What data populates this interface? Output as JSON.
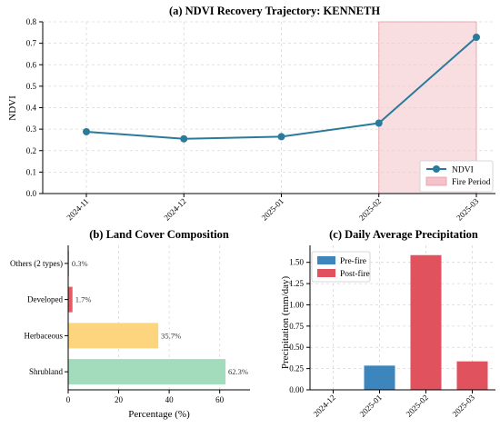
{
  "chart_data": [
    {
      "type": "line",
      "title": "(a) NDVI Recovery Trajectory: KENNETH",
      "xlabel": "",
      "ylabel": "NDVI",
      "categories": [
        "2024-11",
        "2024-12",
        "2025-01",
        "2025-02",
        "2025-03"
      ],
      "series": [
        {
          "name": "NDVI",
          "values": [
            0.288,
            0.255,
            0.265,
            0.328,
            0.728
          ],
          "color": "#2a7b9b"
        }
      ],
      "shaded_region": {
        "name": "Fire Period",
        "from": "2025-02",
        "to": "2025-03",
        "color": "#f4c2c8"
      },
      "ylim": [
        0,
        0.8
      ],
      "yticks": [
        0,
        0.1,
        0.2,
        0.3,
        0.4,
        0.5,
        0.6,
        0.7,
        0.8
      ],
      "ytick_labels": [
        "0.0",
        "0.1",
        "0.2",
        "0.3",
        "0.4",
        "0.5",
        "0.6",
        "0.7",
        "0.8"
      ],
      "grid": true,
      "legend_position": "lower-right",
      "legend_entries": [
        "NDVI",
        "Fire Period"
      ]
    },
    {
      "type": "bar",
      "orientation": "horizontal",
      "title": "(b) Land Cover Composition",
      "xlabel": "Percentage (%)",
      "ylabel": "",
      "categories": [
        "Shrubland",
        "Herbaceous",
        "Developed",
        "Others (2 types)"
      ],
      "values": [
        62.3,
        35.7,
        1.7,
        0.3
      ],
      "data_labels": [
        "62.3%",
        "35.7%",
        "1.7%",
        "0.3%"
      ],
      "colors": [
        "#a3dbbd",
        "#fdd57e",
        "#e55a64",
        "#a9a9a9"
      ],
      "xlim": [
        0,
        72
      ],
      "xticks": [
        0,
        20,
        40,
        60
      ],
      "xtick_labels": [
        "0",
        "20",
        "40",
        "60"
      ],
      "grid": true
    },
    {
      "type": "bar",
      "title": "(c) Daily Average Precipitation",
      "xlabel": "",
      "ylabel": "Precipitation (mm/day)",
      "categories": [
        "2024-12",
        "2025-01",
        "2025-02",
        "2025-03"
      ],
      "values": [
        0.0,
        0.285,
        1.585,
        0.335
      ],
      "bar_series": [
        "Pre-fire",
        "Pre-fire",
        "Post-fire",
        "Post-fire"
      ],
      "series_colors": {
        "Pre-fire": "#3d85bd",
        "Post-fire": "#e0525e"
      },
      "ylim": [
        0,
        1.7
      ],
      "yticks": [
        0,
        0.25,
        0.5,
        0.75,
        1.0,
        1.25,
        1.5
      ],
      "ytick_labels": [
        "0.00",
        "0.25",
        "0.50",
        "0.75",
        "1.00",
        "1.25",
        "1.50"
      ],
      "grid": true,
      "legend_position": "top-left",
      "legend_entries": [
        "Pre-fire",
        "Post-fire"
      ]
    }
  ]
}
